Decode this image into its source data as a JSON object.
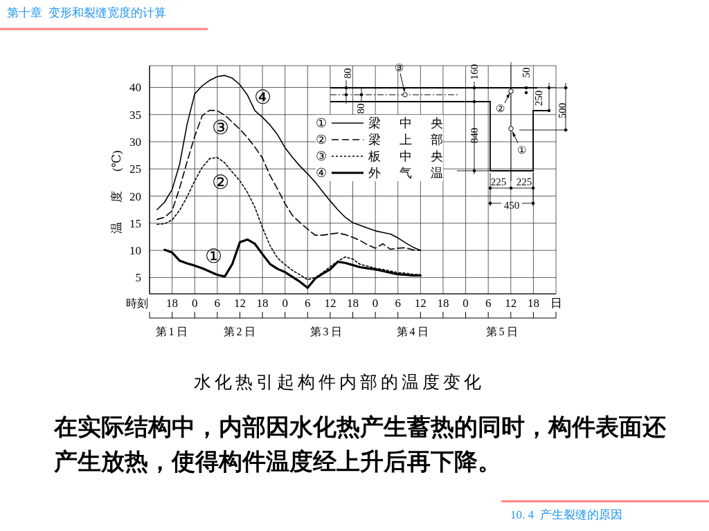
{
  "chart_data": {
    "type": "line",
    "title": "水化热引起构件内部的温度变化",
    "xlabel": "時刻",
    "ylabel": "温 度 (℃)",
    "categories": [
      null,
      null,
      null,
      "18",
      null,
      null,
      "0",
      null,
      null,
      "6",
      null,
      null,
      "12",
      null,
      null,
      "18",
      null,
      null,
      "0",
      null,
      null,
      "6",
      null,
      null,
      "12",
      null,
      null,
      "18",
      null,
      null,
      "0",
      null,
      null,
      "6",
      null,
      null,
      "12",
      null,
      null,
      "18",
      null,
      null,
      "0",
      null,
      null,
      "6",
      null,
      null,
      "12",
      null,
      null,
      "18",
      null,
      null,
      "日"
    ],
    "ylim": [
      2,
      44
    ],
    "yticks": [
      5,
      10,
      15,
      20,
      25,
      30,
      35,
      40
    ],
    "grid": true,
    "legend": "top right",
    "series": [
      {
        "name": "梁中央",
        "color": "#000000",
        "line_style": "solid",
        "values": [
          null,
          17.5,
          18.9,
          21.2,
          25.9,
          33.3,
          38.8,
          40.3,
          41.3,
          42.0,
          42.2,
          41.7,
          40.5,
          38.6,
          35.7,
          34.5,
          33.1,
          31.3,
          28.9,
          27.1,
          25.5,
          24.1,
          22.6,
          20.8,
          19.1,
          17.5,
          16.1,
          15.1,
          14.6,
          14.1,
          13.6,
          13.3,
          13.0,
          12.3,
          11.4,
          10.6,
          10.0,
          null,
          null,
          null,
          null,
          null,
          null,
          null,
          null,
          null,
          null,
          null,
          null,
          null,
          null,
          null,
          null,
          null,
          null
        ]
      },
      {
        "name": "梁上部",
        "color": "#000000",
        "line_style": "dashed",
        "values": [
          null,
          15.7,
          16.1,
          17.3,
          21.5,
          26.4,
          31.0,
          34.8,
          35.8,
          35.7,
          34.9,
          33.6,
          32.3,
          30.8,
          29.0,
          27.0,
          23.8,
          21.3,
          18.6,
          16.4,
          15.1,
          13.9,
          12.8,
          12.8,
          13.0,
          13.2,
          12.9,
          12.4,
          11.8,
          11.0,
          10.4,
          11.2,
          10.2,
          10.4,
          10.5,
          10.1,
          10.0,
          null,
          null,
          null,
          null,
          null,
          null,
          null,
          null,
          null,
          null,
          null,
          null,
          null,
          null,
          null,
          null,
          null,
          null
        ]
      },
      {
        "name": "板中央",
        "color": "#000000",
        "line_style": "dotted",
        "values": [
          null,
          14.8,
          14.9,
          15.6,
          17.4,
          19.9,
          22.8,
          25.3,
          26.9,
          27.1,
          26.1,
          24.4,
          22.8,
          20.7,
          17.9,
          14.2,
          10.9,
          8.6,
          7.4,
          6.3,
          5.5,
          4.6,
          5.0,
          5.9,
          7.0,
          8.0,
          8.8,
          8.4,
          7.4,
          7.1,
          6.7,
          6.5,
          6.2,
          5.9,
          5.8,
          5.6,
          5.5,
          null,
          null,
          null,
          null,
          null,
          null,
          null,
          null,
          null,
          null,
          null,
          null,
          null,
          null,
          null,
          null,
          null,
          null
        ]
      },
      {
        "name": "外气温",
        "color": "#000000",
        "line_style": "solid",
        "values": [
          null,
          null,
          10.1,
          9.6,
          8.1,
          7.6,
          7.2,
          6.7,
          6.1,
          5.5,
          5.2,
          7.5,
          11.5,
          12.0,
          11.2,
          9.3,
          7.5,
          6.6,
          6.0,
          5.1,
          4.2,
          3.1,
          4.8,
          5.7,
          6.5,
          7.9,
          7.7,
          7.3,
          6.9,
          6.7,
          6.5,
          6.2,
          5.9,
          5.6,
          5.5,
          5.4,
          5.4,
          null,
          null,
          null,
          null,
          null,
          null,
          null,
          null,
          null,
          null,
          null,
          null,
          null,
          null,
          null,
          null,
          null,
          null
        ]
      }
    ],
    "annotations": [
      "第十章  变形和裂缝宽度的计算",
      "在实际结构中，内部因水化热产生蓄热的同时，构件表面还产生放热，使得构件温度经上升后再下降。",
      "10. 4  产生裂缝的原因",
      "第1日",
      "第2日",
      "第3日",
      "第4日",
      "第5日",
      "④",
      "③",
      "②",
      "①",
      "③",
      "②",
      "①",
      "80",
      "80",
      "160",
      "840",
      "50",
      "250",
      "500",
      "225",
      "225",
      "450",
      "①",
      "②",
      "③",
      "④"
    ]
  }
}
